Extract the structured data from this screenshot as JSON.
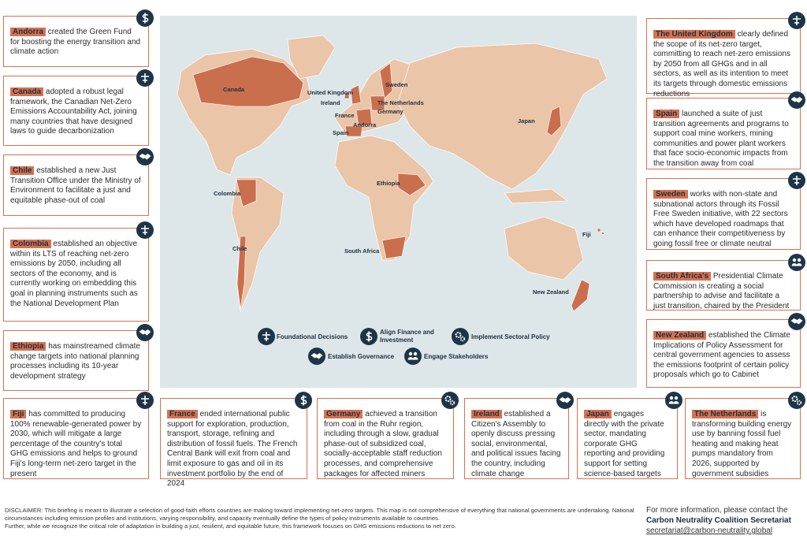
{
  "left_cards": [
    {
      "country": "Andorra",
      "text": "created the Green Fund for boosting the energy transition and climate action"
    },
    {
      "country": "Canada",
      "text": "adopted a robust legal framework, the Canadian Net-Zero Emissions Accountability Act, joining many countries that have designed laws to guide decarbonization"
    },
    {
      "country": "Chile",
      "text": "established a new Just Transition Office under the Ministry of Environment to facilitate a just and equitable phase-out of coal"
    },
    {
      "country": "Colombia",
      "text": "established an objective within its LTS of reaching net-zero emissions by 2050, including all sectors of the economy, and is currently working on embedding this goal in planning instruments such as the National Development Plan"
    },
    {
      "country": "Ethiopia",
      "text": "has mainstreamed climate change targets into national planning processes including its 10-year development strategy"
    },
    {
      "country": "Fiji",
      "text": "has committed to producing 100% renewable-generated power by 2030, which will mitigate a large percentage of the country's total GHG emissions and helps to ground Fiji's long-term net-zero target in the present"
    }
  ],
  "right_cards": [
    {
      "country": "The United Kingdom",
      "text": "clearly defined the scope of its net-zero target, committing to reach net-zero emissions by 2050 from all GHGs and in all sectors, as well as its intention to meet its targets through domestic emissions reductions"
    },
    {
      "country": "Spain",
      "text": "launched a suite of just transition agreements and programs to support coal mine workers, mining communities and power plant workers that face socio-economic impacts from the transition away from coal"
    },
    {
      "country": "Sweden",
      "text": "works with non-state and subnational actors through its Fossil Free Sweden initiative, with 22 sectors which have developed roadmaps that can enhance their competitiveness by going fossil free or climate neutral"
    },
    {
      "country": "South Africa's",
      "text": "Presidential Climate Commission is creating a social partnership to advise and facilitate a just transition, chaired by the President"
    },
    {
      "country": "New Zealand",
      "text": "established the Climate Implications of Policy Assessment for central government agencies to assess the emissions footprint of certain policy proposals which go to Cabinet"
    },
    {
      "country": "The Netherlands",
      "text": "is transforming building energy use by banning fossil fuel heating and making heat pumps mandatory from 2026, supported by government subsidies"
    }
  ],
  "bottom_cards": [
    {
      "country": "France",
      "text": "ended international public support for exploration, production, transport, storage, refining and distribution of fossil fuels. The French Central Bank will exit from coal and limit exposure to gas and oil in its investment portfolio by the end of 2024"
    },
    {
      "country": "Germany",
      "text": "achieved a transition from coal in the Ruhr region, including through a slow, gradual phase-out of subsidized coal, socially-acceptable staff reduction processes, and comprehensive packages for affected miners"
    },
    {
      "country": "Ireland",
      "text": "established a Citizen's Assembly to openly discuss pressing social, environmental, and political issues facing the country, including climate change"
    },
    {
      "country": "Japan",
      "text": "engages directly with the private sector, mandating corporate GHG reporting and providing support for setting science-based targets"
    }
  ],
  "map_labels": [
    "Canada",
    "United Kingdom",
    "Ireland",
    "France",
    "Spain",
    "Andorra",
    "Sweden",
    "The Netherlands",
    "Germany",
    "Japan",
    "Colombia",
    "Ethiopia",
    "Chile",
    "South Africa",
    "Fiji",
    "New Zealand"
  ],
  "legend": [
    "Foundational Decisions",
    "Align Finance and Investment",
    "Implement Sectoral Policy",
    "Establish Governance",
    "Engage Stakeholders"
  ],
  "disclaimer": {
    "label": "DISCLAIMER:",
    "text": "This briefing is meant to illustrate a selection of good-faith efforts countries are making toward implementing net-zero targets. This map is not comprehensive of everything that national governments are undertaking. National circumstances including emission profiles and institutions, varying responsibility, and capacity eventually define the types of policy instruments available to countries.",
    "text2": "Further, while we recognize the critical role of adaptation in building a just, resilient, and equitable future, this framework focuses on GHG emissions reductions to net zero."
  },
  "contact": {
    "intro": "For more information, please contact the",
    "org": "Carbon Neutrality Coalition Secretariat",
    "email": "secretariat@carbon-neutrality.global"
  }
}
